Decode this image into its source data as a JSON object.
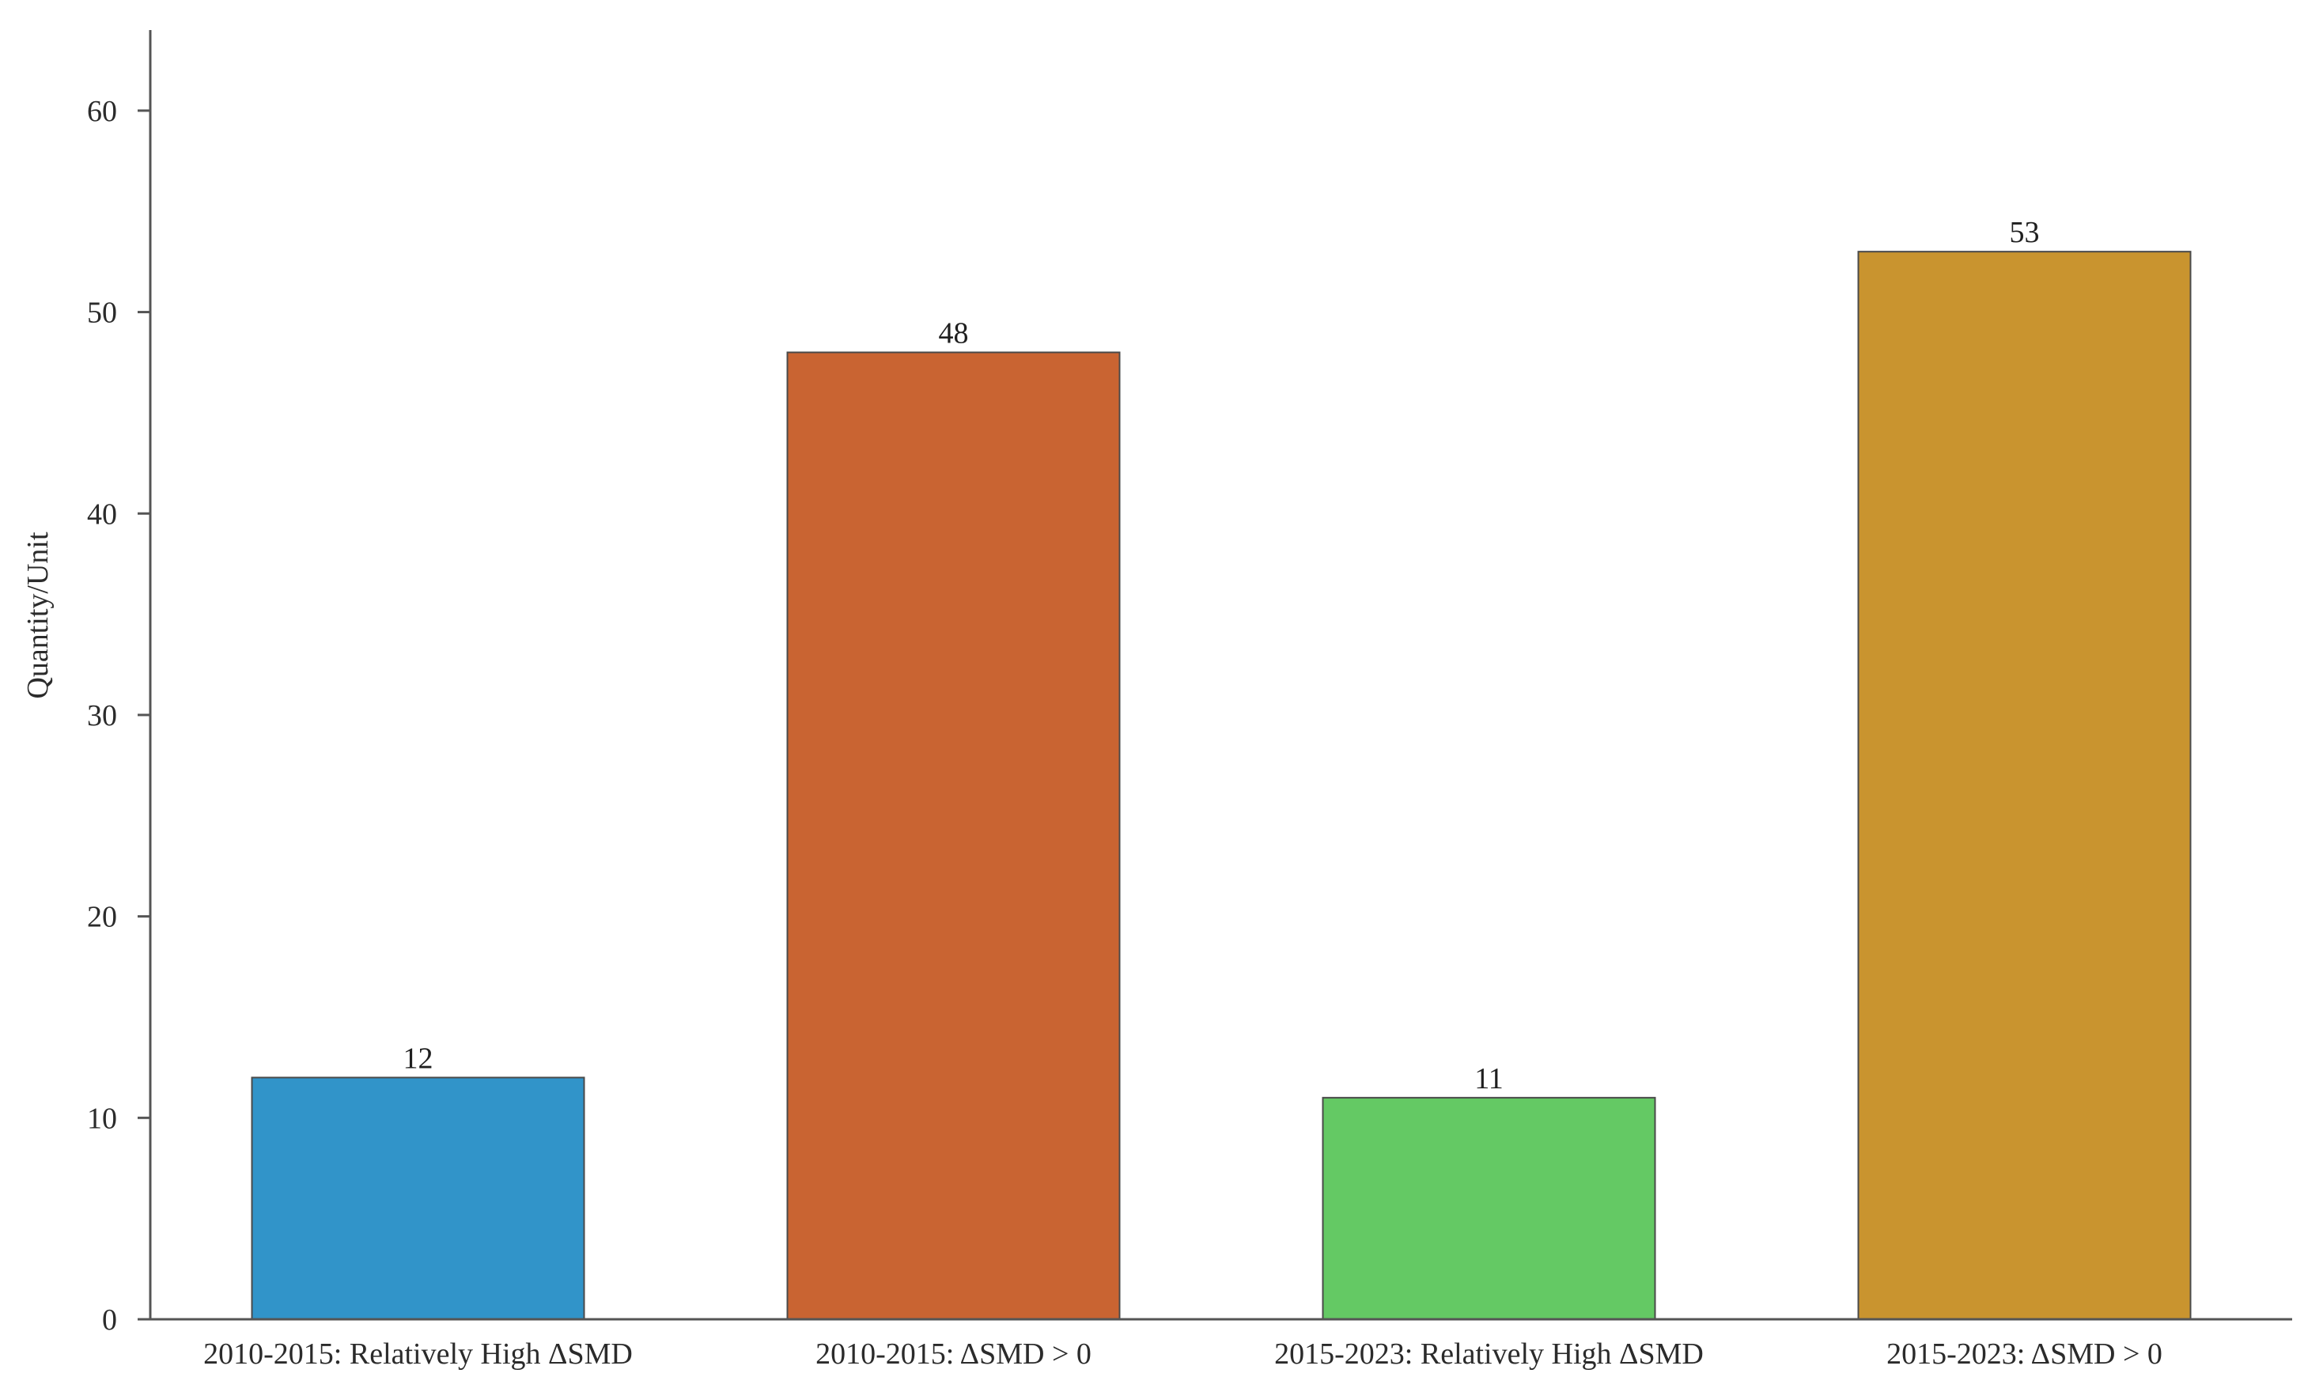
{
  "chart_data": {
    "type": "bar",
    "title": "",
    "xlabel": "",
    "ylabel": "Quantity/Unit",
    "ylim": [
      0,
      64
    ],
    "yticks": [
      0,
      10,
      20,
      30,
      40,
      50,
      60
    ],
    "categories": [
      "2010-2015: Relatively High ΔSMD",
      "2010-2015: ΔSMD > 0",
      "2015-2023: Relatively High ΔSMD",
      "2015-2023: ΔSMD > 0"
    ],
    "values": [
      12,
      48,
      11,
      53
    ],
    "data_labels": [
      "12",
      "48",
      "11",
      "53"
    ],
    "bar_colors": [
      "#3194c9",
      "#c96432",
      "#64c964",
      "#c9942f"
    ],
    "grid": false,
    "legend": "none"
  }
}
